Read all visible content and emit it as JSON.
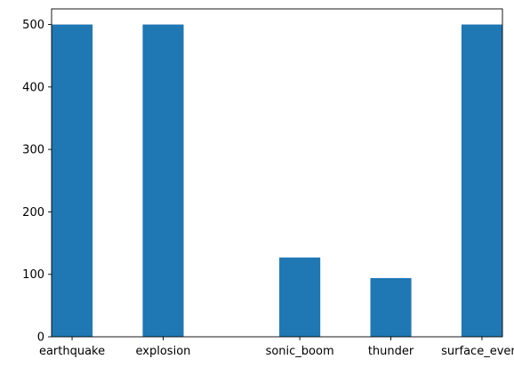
{
  "chart_data": {
    "type": "bar",
    "title": "",
    "xlabel": "",
    "ylabel": "",
    "categories": [
      "earthquake",
      "explosion",
      "sonic_boom",
      "thunder",
      "surface_event"
    ],
    "bars": [
      {
        "x": 0.0,
        "value": 500
      },
      {
        "x": 1.0,
        "value": 500
      },
      {
        "x": 2.5,
        "value": 127
      },
      {
        "x": 3.5,
        "value": 94
      },
      {
        "x": 4.5,
        "value": 500
      }
    ],
    "x_ticks": [
      0.0,
      1.0,
      2.5,
      3.5,
      4.5
    ],
    "y_ticks": [
      0,
      100,
      200,
      300,
      400,
      500
    ],
    "ylim": [
      0,
      525
    ],
    "xlim": [
      -0.225,
      4.725
    ],
    "bar_color": "#1f77b4",
    "grid": false,
    "legend": "none"
  }
}
